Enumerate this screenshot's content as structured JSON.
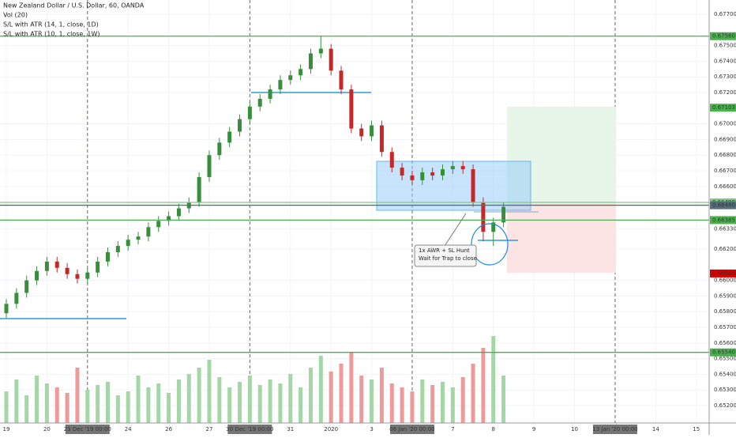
{
  "header": [
    "New Zealand Dollar / U.S. Dollar, 60, OANDA",
    "Vol (20)",
    "S/L with ATR (14, 1, close, 1D)",
    "S/L with ATR (10, 1, close, 1W)"
  ],
  "annotation": [
    "1x AWR + SL Hunt",
    "Wait for Trap to close"
  ],
  "chart_data": {
    "type": "candlestick",
    "up_color": "#388e3c",
    "down_color": "#c62828",
    "volume_up_color": "#a5d6a7",
    "volume_down_color": "#ef9a9a",
    "x": [
      0,
      6,
      12,
      18,
      24,
      30,
      36,
      42,
      48,
      54,
      60,
      66,
      72,
      78,
      84,
      90,
      96,
      102,
      108,
      114,
      120,
      126,
      132,
      138,
      144,
      150,
      156,
      162,
      168,
      174,
      180,
      186,
      192,
      198,
      204,
      210,
      216,
      222,
      228,
      234,
      240,
      246,
      252,
      258,
      264,
      270,
      276,
      282,
      288,
      294
    ],
    "open": [
      0.6579,
      0.6585,
      0.6592,
      0.66,
      0.6606,
      0.6612,
      0.6608,
      0.6604,
      0.6601,
      0.6605,
      0.6612,
      0.6618,
      0.6622,
      0.6626,
      0.6628,
      0.6634,
      0.6638,
      0.6641,
      0.6646,
      0.665,
      0.6666,
      0.668,
      0.6688,
      0.6695,
      0.6703,
      0.6711,
      0.6716,
      0.6722,
      0.6728,
      0.6731,
      0.6735,
      0.6745,
      0.6748,
      0.6734,
      0.6722,
      0.6697,
      0.6692,
      0.6699,
      0.6682,
      0.6672,
      0.6667,
      0.6664,
      0.6669,
      0.6667,
      0.6671,
      0.6673,
      0.6671,
      0.665,
      0.6631,
      0.6637
    ],
    "high": [
      0.6588,
      0.6595,
      0.6603,
      0.6609,
      0.6615,
      0.6615,
      0.6611,
      0.6607,
      0.6608,
      0.6615,
      0.6621,
      0.6625,
      0.6629,
      0.6631,
      0.6637,
      0.6641,
      0.6644,
      0.6649,
      0.6653,
      0.6669,
      0.6683,
      0.6691,
      0.6698,
      0.6706,
      0.6714,
      0.6719,
      0.6725,
      0.6731,
      0.6734,
      0.6738,
      0.6748,
      0.6756,
      0.6751,
      0.6737,
      0.6725,
      0.67,
      0.6702,
      0.6702,
      0.6685,
      0.6675,
      0.667,
      0.6672,
      0.6672,
      0.6674,
      0.6676,
      0.6676,
      0.6674,
      0.6653,
      0.664,
      0.665
    ],
    "low": [
      0.6576,
      0.6582,
      0.6589,
      0.6597,
      0.6603,
      0.6605,
      0.6601,
      0.6598,
      0.6598,
      0.6602,
      0.6609,
      0.6615,
      0.6619,
      0.6623,
      0.6625,
      0.6631,
      0.6635,
      0.6638,
      0.6643,
      0.6647,
      0.6663,
      0.6677,
      0.6685,
      0.6692,
      0.67,
      0.6708,
      0.6713,
      0.6719,
      0.6725,
      0.6728,
      0.6732,
      0.6742,
      0.6731,
      0.6719,
      0.6694,
      0.6689,
      0.6689,
      0.6679,
      0.6669,
      0.6664,
      0.6661,
      0.6661,
      0.6664,
      0.6664,
      0.6668,
      0.6668,
      0.6647,
      0.6625,
      0.6622,
      0.6634
    ],
    "close": [
      0.6585,
      0.6592,
      0.66,
      0.6606,
      0.6612,
      0.6608,
      0.6604,
      0.6601,
      0.6605,
      0.6612,
      0.6618,
      0.6622,
      0.6626,
      0.6628,
      0.6634,
      0.6638,
      0.6641,
      0.6646,
      0.665,
      0.6666,
      0.668,
      0.6688,
      0.6695,
      0.6703,
      0.6711,
      0.6716,
      0.6722,
      0.6728,
      0.6731,
      0.6735,
      0.6745,
      0.6748,
      0.6734,
      0.6722,
      0.6697,
      0.6692,
      0.6699,
      0.6682,
      0.6672,
      0.6667,
      0.6664,
      0.6669,
      0.6667,
      0.6671,
      0.6673,
      0.6671,
      0.665,
      0.6631,
      0.6637,
      0.6647
    ],
    "volume": [
      40,
      55,
      35,
      60,
      50,
      45,
      38,
      70,
      42,
      48,
      52,
      35,
      40,
      60,
      45,
      50,
      38,
      55,
      62,
      70,
      80,
      58,
      45,
      52,
      60,
      48,
      55,
      50,
      62,
      45,
      70,
      85,
      65,
      75,
      90,
      60,
      55,
      70,
      50,
      45,
      40,
      55,
      48,
      52,
      45,
      58,
      75,
      95,
      110,
      60
    ],
    "xlim": [
      -3.74,
      415.6
    ],
    "xticks": [
      {
        "value": 0,
        "label": "19"
      },
      {
        "value": 24,
        "label": "20"
      },
      {
        "value": 48,
        "label": "23 Dec '19  00:00"
      },
      {
        "value": 72,
        "label": "24"
      },
      {
        "value": 96,
        "label": "26"
      },
      {
        "value": 120,
        "label": "27"
      },
      {
        "value": 144,
        "label": "30 Dec '19  00:00"
      },
      {
        "value": 168,
        "label": "31"
      },
      {
        "value": 192,
        "label": "2020"
      },
      {
        "value": 216,
        "label": "3"
      },
      {
        "value": 240,
        "label": "06 Jan '20  00:00"
      },
      {
        "value": 264,
        "label": "7"
      },
      {
        "value": 288,
        "label": "8"
      },
      {
        "value": 312,
        "label": "9"
      },
      {
        "value": 336,
        "label": "10"
      },
      {
        "value": 360,
        "label": "13 Jan '20  00:00"
      },
      {
        "value": 384,
        "label": "14"
      },
      {
        "value": 408,
        "label": "15"
      }
    ],
    "ylim": [
      0.65089,
      0.67791
    ],
    "yticks": [
      {
        "value": 0.677,
        "label": "0.67700"
      },
      {
        "value": 0.675,
        "label": "0.67500"
      },
      {
        "value": 0.674,
        "label": "0.67400"
      },
      {
        "value": 0.673,
        "label": "0.67300"
      },
      {
        "value": 0.672,
        "label": "0.67200"
      },
      {
        "value": 0.67,
        "label": "0.67000"
      },
      {
        "value": 0.669,
        "label": "0.66900"
      },
      {
        "value": 0.668,
        "label": "0.66800"
      },
      {
        "value": 0.667,
        "label": "0.66700"
      },
      {
        "value": 0.666,
        "label": "0.66600"
      },
      {
        "value": 0.6633,
        "label": "0.66330"
      },
      {
        "value": 0.662,
        "label": "0.66200"
      },
      {
        "value": 0.66,
        "label": "0.66000"
      },
      {
        "value": 0.659,
        "label": "0.65900"
      },
      {
        "value": 0.658,
        "label": "0.65800"
      },
      {
        "value": 0.657,
        "label": "0.65700"
      },
      {
        "value": 0.656,
        "label": "0.65600"
      },
      {
        "value": 0.655,
        "label": "0.65500"
      },
      {
        "value": 0.654,
        "label": "0.65400"
      },
      {
        "value": 0.653,
        "label": "0.65300"
      },
      {
        "value": 0.652,
        "label": "0.65200"
      }
    ],
    "price_labels": [
      {
        "value": 0.6756,
        "label": "0.67560",
        "color": "#4caf50",
        "line": true
      },
      {
        "value": 0.67103,
        "label": "0.67103",
        "color": "#4caf50",
        "line": false
      },
      {
        "value": 0.66498,
        "label": "0.66498",
        "color": "#81c784",
        "line": true
      },
      {
        "value": 0.6648,
        "label": "0.66480",
        "color": "#546e7a",
        "line": true
      },
      {
        "value": 0.66385,
        "label": "0.66385",
        "color": "#4caf50",
        "line": true
      },
      {
        "value": 0.66044,
        "label": "0.66044",
        "color": "#d50000",
        "line": false
      },
      {
        "value": 0.6554,
        "label": "0.65540",
        "color": "#4caf50",
        "line": true
      }
    ]
  }
}
